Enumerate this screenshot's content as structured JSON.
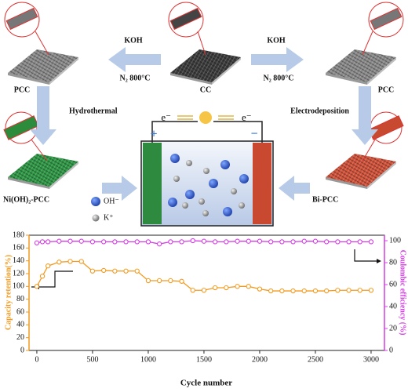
{
  "diagram": {
    "center": "CC",
    "left": "PCC",
    "right": "PCC",
    "reagent_left": "KOH",
    "condition_left": "N₂  800°C",
    "reagent_right": "KOH",
    "condition_right": "N₂  800°C",
    "step_left": "Hydrothermal",
    "step_right": "Electrodeposition",
    "product_left": "Ni(OH)₂-PCC",
    "product_right": "Bi-PCC",
    "electron_left": "e⁻",
    "electron_right": "e⁻",
    "positive": "+",
    "negative": "−",
    "anion": "OH⁻",
    "cation": "K⁺"
  },
  "chart_data": {
    "type": "line",
    "x_label": "Cycle number",
    "y_label": "Capacity retention(%)",
    "y2_label": "Coulombic efficiency (%)",
    "x": [
      0,
      50,
      100,
      200,
      300,
      400,
      500,
      600,
      700,
      800,
      900,
      1000,
      1100,
      1200,
      1300,
      1400,
      1500,
      1600,
      1700,
      1800,
      1900,
      2000,
      2100,
      2200,
      2300,
      2400,
      2500,
      2600,
      2700,
      2800,
      2900,
      3000
    ],
    "series": [
      {
        "name": "Capacity retention",
        "color": "#f39a1e",
        "axis": "y",
        "values": [
          100,
          116,
          132,
          138,
          139,
          139,
          124,
          125,
          124,
          124,
          124,
          109,
          109,
          109,
          108,
          94,
          94,
          98,
          98,
          100,
          100,
          96,
          93,
          93,
          93,
          93,
          93,
          93,
          94,
          94,
          94,
          94
        ]
      },
      {
        "name": "Coulombic efficiency",
        "color": "#d63ce6",
        "axis": "y2",
        "values": [
          98,
          99,
          99,
          99.5,
          99.5,
          99.5,
          99,
          99,
          99,
          99,
          99,
          99,
          97,
          99,
          99,
          100,
          99.5,
          99,
          99,
          99.5,
          99.5,
          99.5,
          99,
          99,
          99,
          99.5,
          99.5,
          99,
          99,
          99,
          99,
          99
        ]
      }
    ],
    "xlim": [
      -70,
      3120
    ],
    "xticks": [
      0,
      500,
      1000,
      1500,
      2000,
      2500,
      3000
    ],
    "ylim": [
      0,
      180
    ],
    "yticks": [
      0,
      20,
      40,
      60,
      80,
      100,
      120,
      140,
      160,
      180
    ],
    "y2lim": [
      0,
      105
    ],
    "y2ticks": [
      0,
      20,
      40,
      60,
      80,
      100
    ]
  }
}
